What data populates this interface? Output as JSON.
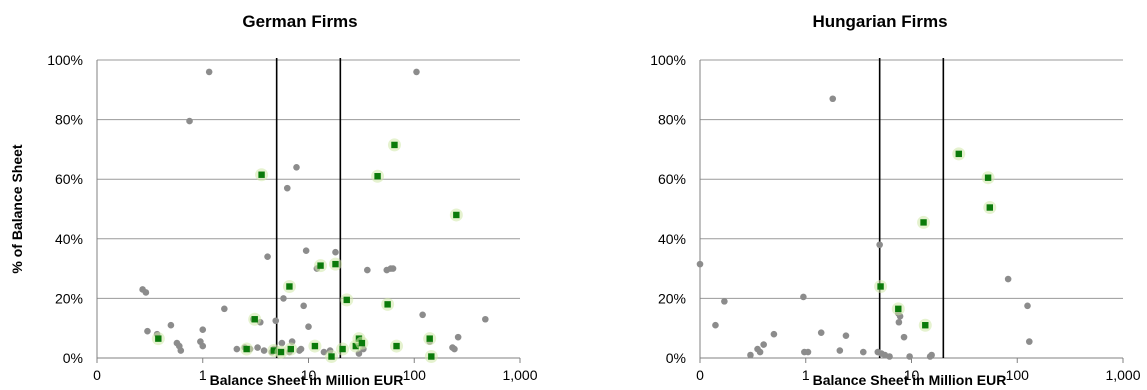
{
  "chart_data": [
    {
      "type": "scatter",
      "title": "German Firms",
      "xlabel": "Balance Sheet in Million EUR",
      "ylabel": "% of Balance Sheet",
      "x_scale": "log",
      "x_ticks": [
        "0",
        "1",
        "10",
        "100",
        "1,000"
      ],
      "y_ticks": [
        "0%",
        "20%",
        "40%",
        "60%",
        "80%",
        "100%"
      ],
      "ylim": [
        0,
        100
      ],
      "grid": true,
      "vertical_lines_x": [
        5,
        20
      ],
      "series": [
        {
          "color": "#8c8c8c",
          "marker": "circle",
          "points": [
            [
              0.27,
              23
            ],
            [
              0.29,
              22
            ],
            [
              0.3,
              9
            ],
            [
              0.37,
              8
            ],
            [
              0.5,
              11
            ],
            [
              0.57,
              5
            ],
            [
              0.6,
              4
            ],
            [
              0.62,
              2.5
            ],
            [
              0.75,
              79.5
            ],
            [
              0.95,
              5.5
            ],
            [
              1.0,
              4
            ],
            [
              1.0,
              9.5
            ],
            [
              1.15,
              96
            ],
            [
              1.6,
              16.5
            ],
            [
              2.1,
              3
            ],
            [
              2.5,
              3.5
            ],
            [
              2.8,
              3
            ],
            [
              3.0,
              13
            ],
            [
              3.3,
              3.5
            ],
            [
              3.5,
              12
            ],
            [
              3.8,
              2.5
            ],
            [
              4.1,
              34
            ],
            [
              4.5,
              2
            ],
            [
              4.7,
              3
            ],
            [
              4.9,
              12.5
            ],
            [
              5.2,
              2
            ],
            [
              5.6,
              5
            ],
            [
              5.8,
              20
            ],
            [
              6.3,
              57
            ],
            [
              6.6,
              2
            ],
            [
              7.0,
              5.5
            ],
            [
              7.7,
              64
            ],
            [
              8.2,
              2.5
            ],
            [
              8.5,
              3
            ],
            [
              9.0,
              17.5
            ],
            [
              9.5,
              36
            ],
            [
              10.0,
              10.5
            ],
            [
              12.0,
              30
            ],
            [
              14.0,
              2
            ],
            [
              16.0,
              2.5
            ],
            [
              18.0,
              35.5
            ],
            [
              30.0,
              1.5
            ],
            [
              33.0,
              3
            ],
            [
              36.0,
              29.5
            ],
            [
              55.0,
              29.5
            ],
            [
              60.0,
              30
            ],
            [
              63.0,
              30
            ],
            [
              105.0,
              96
            ],
            [
              120.0,
              14.5
            ],
            [
              140.0,
              5.5
            ],
            [
              230.0,
              3.5
            ],
            [
              240.0,
              3
            ],
            [
              260.0,
              7
            ],
            [
              470.0,
              13
            ]
          ]
        },
        {
          "color": "#0a7a0a",
          "marker": "square",
          "points": [
            [
              0.38,
              6.5
            ],
            [
              2.6,
              3
            ],
            [
              3.1,
              13
            ],
            [
              3.6,
              61.5
            ],
            [
              4.7,
              2.5
            ],
            [
              5.5,
              2
            ],
            [
              6.6,
              24
            ],
            [
              6.8,
              3
            ],
            [
              11.5,
              4
            ],
            [
              13.0,
              31
            ],
            [
              16.5,
              0.5
            ],
            [
              18.0,
              31.5
            ],
            [
              21.0,
              3
            ],
            [
              23.0,
              19.5
            ],
            [
              28.0,
              4
            ],
            [
              30.0,
              6.5
            ],
            [
              32.0,
              5
            ],
            [
              45.0,
              61
            ],
            [
              56.0,
              18
            ],
            [
              65.0,
              71.5
            ],
            [
              68.0,
              4
            ],
            [
              140.0,
              6.5
            ],
            [
              145.0,
              0.5
            ],
            [
              250.0,
              48
            ]
          ]
        }
      ]
    },
    {
      "type": "scatter",
      "title": "Hungarian Firms",
      "xlabel": "Balance Sheet in Million EUR",
      "ylabel": "",
      "x_scale": "log",
      "x_ticks": [
        "0",
        "1",
        "10",
        "100",
        "1,000"
      ],
      "y_ticks": [
        "0%",
        "20%",
        "40%",
        "60%",
        "80%",
        "100%"
      ],
      "ylim": [
        0,
        100
      ],
      "grid": true,
      "vertical_lines_x": [
        5,
        20
      ],
      "series": [
        {
          "color": "#8c8c8c",
          "marker": "circle",
          "points": [
            [
              0.1,
              31.5
            ],
            [
              0.14,
              11
            ],
            [
              0.17,
              19
            ],
            [
              0.3,
              1
            ],
            [
              0.35,
              3
            ],
            [
              0.37,
              2
            ],
            [
              0.4,
              4.5
            ],
            [
              0.5,
              8
            ],
            [
              0.95,
              20.5
            ],
            [
              0.97,
              2
            ],
            [
              1.05,
              2
            ],
            [
              1.4,
              8.5
            ],
            [
              1.8,
              87
            ],
            [
              2.1,
              2.5
            ],
            [
              2.4,
              7.5
            ],
            [
              3.5,
              2
            ],
            [
              4.8,
              2
            ],
            [
              5.0,
              38
            ],
            [
              5.2,
              1.5
            ],
            [
              5.6,
              1
            ],
            [
              6.2,
              0.5
            ],
            [
              7.5,
              15
            ],
            [
              7.6,
              12
            ],
            [
              7.8,
              14
            ],
            [
              8.5,
              7
            ],
            [
              9.6,
              0.5
            ],
            [
              15.0,
              0.5
            ],
            [
              15.5,
              1
            ],
            [
              82.0,
              26.5
            ],
            [
              125.0,
              17.5
            ],
            [
              130.0,
              5.5
            ]
          ]
        },
        {
          "color": "#0a7a0a",
          "marker": "square",
          "points": [
            [
              5.1,
              24
            ],
            [
              7.5,
              16.5
            ],
            [
              13.0,
              45.5
            ],
            [
              13.5,
              11
            ],
            [
              28.0,
              68.5
            ],
            [
              53.0,
              60.5
            ],
            [
              55.0,
              50.5
            ]
          ]
        }
      ]
    }
  ]
}
